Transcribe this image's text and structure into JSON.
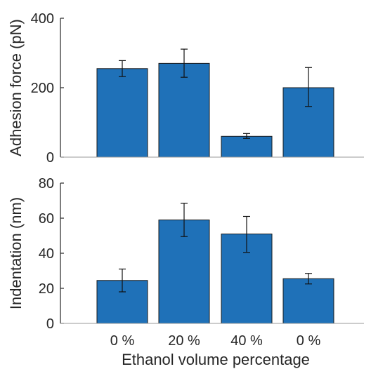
{
  "chart_data": [
    {
      "type": "bar",
      "panel": "top",
      "categories": [
        "0 %",
        "20 %",
        "40 %",
        "0 %"
      ],
      "values": [
        255,
        270,
        60,
        200
      ],
      "errors": [
        [
          232,
          278
        ],
        [
          230,
          311
        ],
        [
          54,
          68
        ],
        [
          146,
          258
        ]
      ],
      "ylabel": "Adhesion force (pN)",
      "xlabel": "",
      "ylim": [
        0,
        400
      ],
      "yticks": [
        0,
        200,
        400
      ],
      "show_x_tick_labels": false,
      "bar_color": "#1f71b8"
    },
    {
      "type": "bar",
      "panel": "bottom",
      "categories": [
        "0 %",
        "20 %",
        "40 %",
        "0 %"
      ],
      "values": [
        24.5,
        59,
        51,
        25.5
      ],
      "errors": [
        [
          18,
          31
        ],
        [
          49.5,
          68.5
        ],
        [
          40.5,
          61
        ],
        [
          22.5,
          28.5
        ]
      ],
      "ylabel": "Indentation (nm)",
      "xlabel": "Ethanol volume percentage",
      "ylim": [
        0,
        80
      ],
      "yticks": [
        0,
        20,
        40,
        60,
        80
      ],
      "show_x_tick_labels": true,
      "bar_color": "#1f71b8"
    }
  ]
}
